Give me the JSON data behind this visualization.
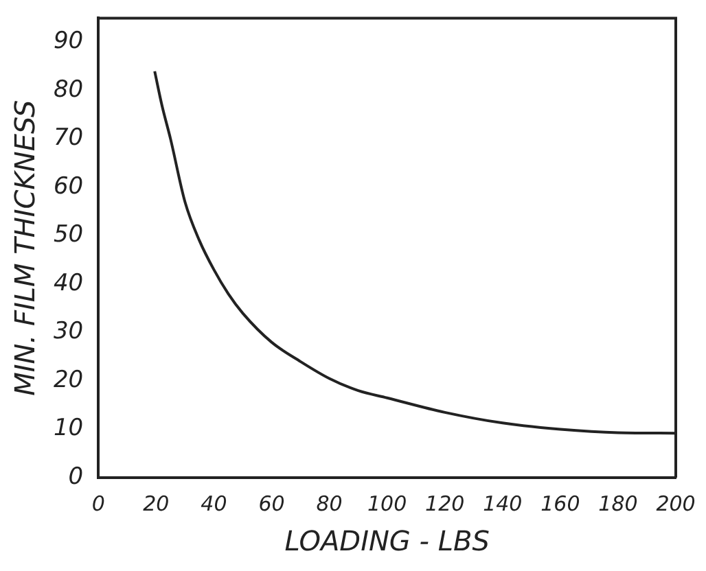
{
  "chart_data": {
    "type": "line",
    "xlabel": "LOADING - LBS",
    "ylabel": "MIN. FILM THICKNESS",
    "series": [
      {
        "color": "#222222",
        "x": [
          19.5,
          22,
          25,
          30,
          35,
          40,
          45,
          50,
          60,
          70,
          80,
          90,
          100,
          120,
          140,
          160,
          180,
          200
        ],
        "values": [
          84,
          77,
          70,
          57,
          49,
          43,
          38,
          34,
          28,
          24,
          20.5,
          18,
          16.5,
          13.5,
          11.3,
          10,
          9.3,
          9.2
        ]
      }
    ],
    "xlim": [
      0,
      200
    ],
    "xticks": [
      0,
      20,
      40,
      60,
      80,
      100,
      120,
      140,
      160,
      180,
      200
    ],
    "ylim": [
      0,
      95
    ],
    "yticks": [
      0,
      10,
      20,
      30,
      40,
      50,
      60,
      70,
      80,
      90
    ],
    "grid": false,
    "legend": false,
    "marker": "none",
    "line_style": "solid"
  }
}
